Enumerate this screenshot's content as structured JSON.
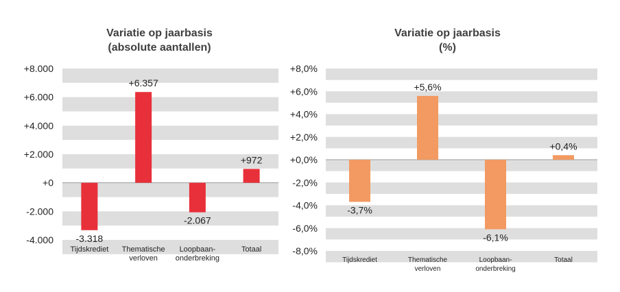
{
  "chart_data": [
    {
      "type": "bar",
      "title": "Variatie op jaarbasis",
      "subtitle": "(absolute aantallen)",
      "categories": [
        "Tijdskrediet",
        "Thematische verloven",
        "Loopbaan-onderbreking",
        "Totaal"
      ],
      "category_lines": [
        [
          "Tijdskrediet"
        ],
        [
          "Thematische",
          "verloven"
        ],
        [
          "Loopbaan-",
          "onderbreking"
        ],
        [
          "Totaal"
        ]
      ],
      "values": [
        -3318,
        6357,
        -2067,
        972
      ],
      "data_labels": [
        "-3.318",
        "+6.357",
        "-2.067",
        "+972"
      ],
      "ylim": [
        -4000,
        8000
      ],
      "y_ticks": [
        8000,
        6000,
        4000,
        2000,
        0,
        -2000,
        -4000
      ],
      "y_tick_labels": [
        "+8.000",
        "+6.000",
        "+4.000",
        "+2.000",
        "+0",
        "-2.000",
        "-4.000"
      ],
      "bar_color": "#e8303a",
      "band_color": "#dedede",
      "grid": "horizontal bands",
      "legend": "none"
    },
    {
      "type": "bar",
      "title": "Variatie op jaarbasis",
      "subtitle": "(%)",
      "categories": [
        "Tijdskrediet",
        "Thematische verloven",
        "Loopbaan-onderbreking",
        "Totaal"
      ],
      "category_lines": [
        [
          "Tijdskrediet"
        ],
        [
          "Thematische",
          "verloven"
        ],
        [
          "Loopbaan-",
          "onderbreking"
        ],
        [
          "Totaal"
        ]
      ],
      "values": [
        -3.7,
        5.6,
        -6.1,
        0.4
      ],
      "data_labels": [
        "-3,7%",
        "+5,6%",
        "-6,1%",
        "+0,4%"
      ],
      "ylim": [
        -8,
        8
      ],
      "y_ticks": [
        8,
        6,
        4,
        2,
        0,
        -2,
        -4,
        -6,
        -8
      ],
      "y_tick_labels": [
        "+8,0%",
        "+6,0%",
        "+4,0%",
        "+2,0%",
        "+0,0%",
        "-2,0%",
        "-4,0%",
        "-6,0%",
        "-8,0%"
      ],
      "bar_color": "#f29a61",
      "band_color": "#dedede",
      "grid": "horizontal bands",
      "legend": "none"
    }
  ]
}
